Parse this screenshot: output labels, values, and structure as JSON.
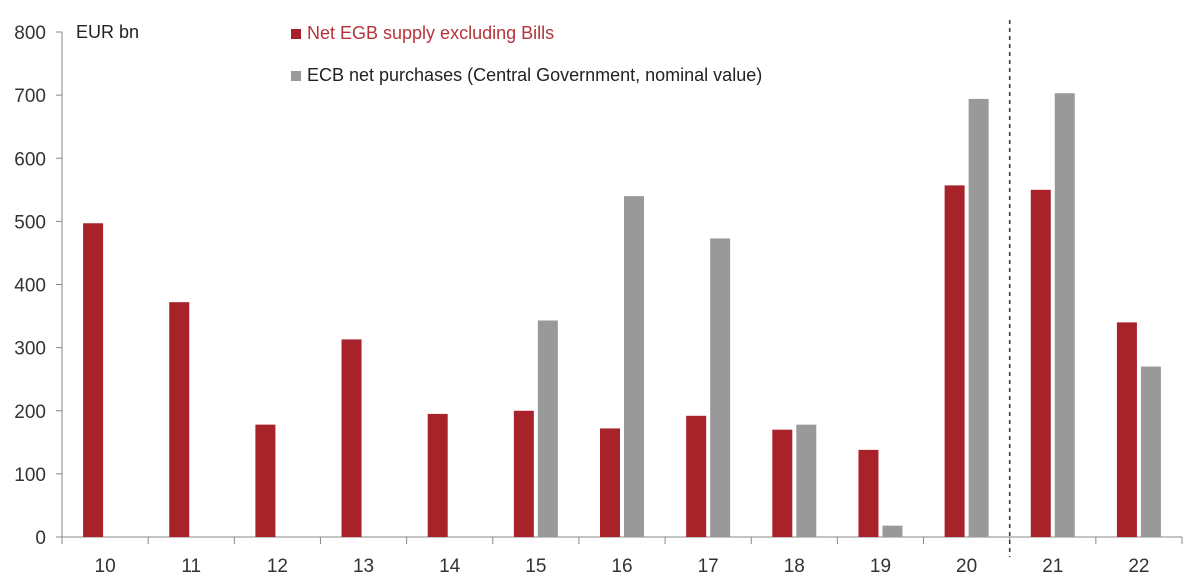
{
  "chart_data": {
    "type": "bar",
    "unit_label": "EUR bn",
    "categories": [
      "10",
      "11",
      "12",
      "13",
      "14",
      "15",
      "16",
      "17",
      "18",
      "19",
      "20",
      "21",
      "22"
    ],
    "series": [
      {
        "name": "Net EGB supply excluding Bills",
        "color": "#A8222A",
        "text_color": "#B5343C",
        "values": [
          497,
          372,
          178,
          313,
          195,
          200,
          172,
          192,
          170,
          138,
          557,
          550,
          340
        ]
      },
      {
        "name": "ECB net purchases (Central Government, nominal value)",
        "color": "#999999",
        "text_color": "#222222",
        "values": [
          null,
          null,
          null,
          null,
          null,
          343,
          540,
          473,
          178,
          18,
          694,
          703,
          270
        ]
      }
    ],
    "ylim": [
      0,
      800
    ],
    "yticks": [
      0,
      100,
      200,
      300,
      400,
      500,
      600,
      700,
      800
    ],
    "grid": false,
    "legend_position": "top",
    "divider_after_category": "20",
    "title": "",
    "xlabel": "",
    "ylabel": ""
  }
}
